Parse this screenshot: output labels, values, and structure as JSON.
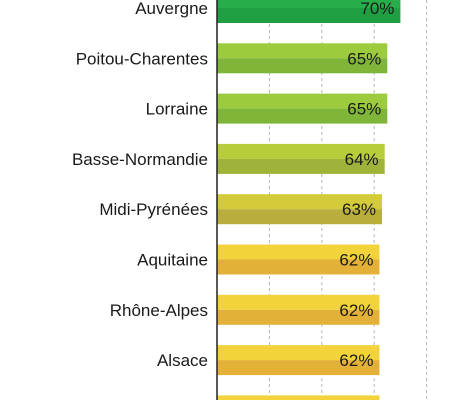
{
  "chart_data": {
    "type": "bar",
    "orientation": "horizontal",
    "categories": [
      "Auvergne",
      "Poitou-Charentes",
      "Lorraine",
      "Basse-Normandie",
      "Midi-Pyrénées",
      "Aquitaine",
      "Rhône-Alpes",
      "Alsace"
    ],
    "values": [
      70,
      65,
      65,
      64,
      63,
      62,
      62,
      62
    ],
    "value_labels": [
      "70%",
      "65%",
      "65%",
      "64%",
      "63%",
      "62%",
      "62%",
      "62%"
    ],
    "unit": "%",
    "grid": true,
    "bar_colors": [
      {
        "top": "#27ae4b",
        "bottom": "#1f9e42"
      },
      {
        "top": "#9ccc3d",
        "bottom": "#7fb63a"
      },
      {
        "top": "#9ccc3d",
        "bottom": "#7fb63a"
      },
      {
        "top": "#b9cc3a",
        "bottom": "#9fb33a"
      },
      {
        "top": "#d3cb3a",
        "bottom": "#b8ad3d"
      },
      {
        "top": "#f2d33a",
        "bottom": "#e3b138"
      },
      {
        "top": "#f2d33a",
        "bottom": "#e3b138"
      },
      {
        "top": "#f2d33a",
        "bottom": "#e3b138"
      }
    ],
    "partial_next_bar_color": "#f2d33a"
  }
}
